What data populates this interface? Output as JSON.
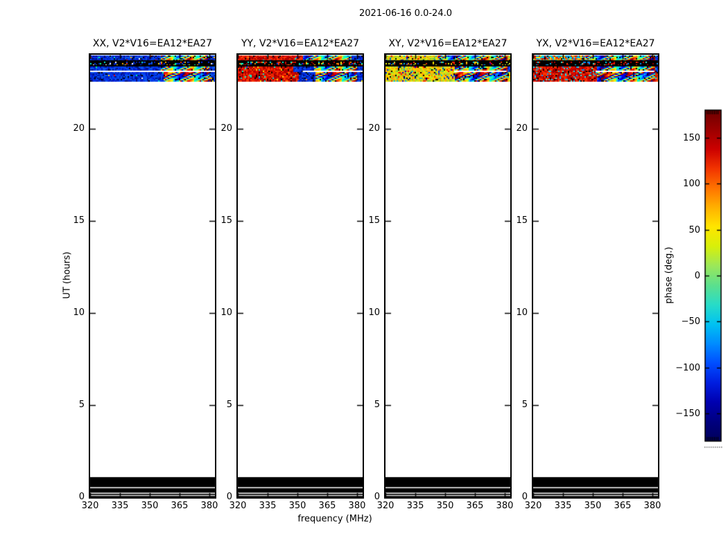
{
  "chart_data": {
    "type": "heatmap",
    "title": "2021-06-16 0.0-24.0",
    "panels": [
      {
        "id": "xx",
        "title": "XX, V2*V16=EA12*EA27",
        "rows": {
          "r1": [
            [
              "blue",
              0.56
            ],
            [
              "jet",
              0.95
            ],
            [
              "blue",
              1.0
            ]
          ],
          "r2": "blue",
          "r3": [
            [
              "blue",
              0.56
            ],
            [
              "jet",
              0.95
            ],
            [
              "blue",
              1.0
            ]
          ],
          "r4": [
            [
              "blue",
              0.58
            ],
            [
              "jet",
              0.96
            ],
            [
              "blue",
              1.0
            ]
          ]
        },
        "speckles": "speck",
        "speckle_chance": 0.05,
        "white_line": [
          0.0,
          1.0
        ]
      },
      {
        "id": "yy",
        "title": "YY, V2*V16=EA12*EA27",
        "rows": {
          "r1": [
            [
              "red",
              0.52
            ],
            [
              "jet",
              0.9
            ],
            [
              "blue",
              1.0
            ]
          ],
          "r2": "red",
          "r3": [
            [
              "red",
              0.44
            ],
            [
              "blue",
              0.6
            ],
            [
              "jet",
              0.95
            ],
            [
              "blue",
              1.0
            ]
          ],
          "r4": [
            [
              "red",
              0.48
            ],
            [
              "blue",
              0.62
            ],
            [
              "jet",
              0.95
            ],
            [
              "blue",
              1.0
            ]
          ]
        },
        "speckles": "yyspeck",
        "speckle_chance": 0.06,
        "white_line": [
          0.52,
          1.0
        ]
      },
      {
        "id": "xy",
        "title": "XY, V2*V16=EA12*EA27",
        "rows": {
          "r1": [
            [
              "yellow",
              0.42
            ],
            [
              "jet",
              0.97
            ],
            [
              "yellow",
              1.0
            ]
          ],
          "r2": "yellow",
          "r3": [
            [
              "yellow",
              0.55
            ],
            [
              "jet",
              0.97
            ],
            [
              "blue",
              1.0
            ]
          ],
          "r4": [
            [
              "yellow",
              0.55
            ],
            [
              "jet",
              0.97
            ],
            [
              "yellow",
              1.0
            ]
          ]
        },
        "speckles": "xyspeck",
        "speckle_chance": 0.11,
        "white_line": [
          0.55,
          0.97
        ]
      },
      {
        "id": "yx",
        "title": "YX, V2*V16=EA12*EA27",
        "rows": {
          "r1": [
            [
              "yxmix",
              0.42
            ],
            [
              "jet",
              0.97
            ],
            [
              "blue",
              1.0
            ]
          ],
          "r2": "red",
          "r3": [
            [
              "red",
              0.5
            ],
            [
              "jet",
              0.97
            ],
            [
              "blue",
              1.0
            ]
          ],
          "r4": [
            [
              "red",
              0.5
            ],
            [
              "jet",
              0.97
            ],
            [
              "orange",
              1.0
            ]
          ]
        },
        "speckles": "cyan",
        "speckle_chance": 0.13,
        "white_line": [
          0.5,
          0.97
        ]
      }
    ],
    "x_axis": {
      "label": "frequency (MHz)",
      "ticks": [
        320,
        335,
        350,
        365,
        380
      ],
      "range": [
        320,
        382.8
      ]
    },
    "y_axis": {
      "label": "UT (hours)",
      "ticks": [
        0,
        5,
        10,
        15,
        20
      ],
      "range": [
        0,
        24
      ]
    },
    "colorbar": {
      "label": "phase (deg.)",
      "ticks": [
        "150",
        "100",
        "50",
        "0",
        "−50",
        "−100",
        "−150"
      ],
      "tick_values": [
        150,
        100,
        50,
        0,
        -50,
        -100,
        -150
      ],
      "range": [
        -180,
        180
      ],
      "gradient_top_to_bottom": [
        "#6e0000",
        "#9c0000",
        "#cc0000",
        "#f23400",
        "#ff7300",
        "#ffb100",
        "#ffe600",
        "#d8f00a",
        "#9ce85a",
        "#5ce08e",
        "#28dcc8",
        "#00c2f2",
        "#008cff",
        "#004eff",
        "#001ee0",
        "#0000b0",
        "#000080",
        "#00005a"
      ]
    },
    "data_features": {
      "top_scan_band_ut_hours": [
        22.5,
        24.0
      ],
      "top_band_black_separator_lines": 2,
      "bottom_black_bands_ut_hours": [
        [
          0.02,
          0.08
        ],
        [
          0.13,
          0.19
        ],
        [
          0.26,
          0.49
        ],
        [
          0.56,
          1.1
        ]
      ],
      "note": "Per-baseline phase waterfall; colored noisy band near top with moire interference pattern toward high frequencies; solid black flagged bands near UT 0-1.1"
    },
    "palettes": {
      "blue": [
        "#0018c8",
        "#0030e8",
        "#0545ee",
        "#001080",
        "#0a58e8",
        "#0020b0",
        "#0038f0"
      ],
      "red": [
        "#c80000",
        "#e81800",
        "#b00000",
        "#f03000",
        "#980000",
        "#d80800",
        "#ff3800"
      ],
      "yellow": [
        "#f0e000",
        "#ffc800",
        "#cce028",
        "#ff9800",
        "#a0d830",
        "#e8f000",
        "#70c848",
        "#ffb000"
      ],
      "orange": [
        "#e82800",
        "#ff5500",
        "#c81800",
        "#ff7700",
        "#d83000",
        "#b81000"
      ],
      "yxmix": [
        "#e82800",
        "#ff6600",
        "#00d0e0",
        "#ffd000",
        "#c81800",
        "#00a0ff",
        "#f0f000"
      ],
      "jet": [
        "#000090",
        "#0000f0",
        "#0060ff",
        "#00c0ff",
        "#00ffd0",
        "#50ff80",
        "#b0ff40",
        "#f0f000",
        "#ffa800",
        "#ff5000",
        "#e00000",
        "#900000"
      ],
      "speck": [
        "#ff3000",
        "#ffb000",
        "#00e0d0",
        "#ff0000",
        "#00ff90",
        "#ffe000",
        "#ffffff"
      ],
      "yyspeck": [
        "#ffe000",
        "#00e0d0",
        "#0040ff",
        "#ff8800",
        "#00ffcc"
      ],
      "xyspeck": [
        "#f03000",
        "#0040e0",
        "#00c0e0",
        "#ff0000",
        "#0000d0"
      ],
      "cyan": [
        "#00c0e8",
        "#00e0ff",
        "#0090ff",
        "#40e8d0"
      ]
    }
  }
}
